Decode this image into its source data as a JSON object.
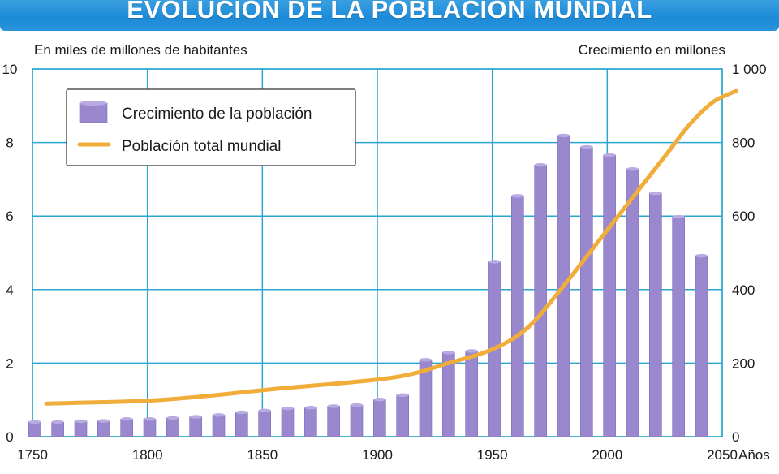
{
  "title": "EVOLUCIÓN DE LA POBLACIÓN MUNDIAL",
  "colors": {
    "title_bg": "#1b8ad8",
    "grid": "#2aa6d0",
    "bar": "#9a88cf",
    "bar_top": "#b9abe2",
    "line": "#f0ad3a"
  },
  "chart_data": {
    "type": "bar",
    "title": "EVOLUCIÓN DE LA POBLACIÓN MUNDIAL",
    "left_axis_label": "En miles de millones de habitantes",
    "right_axis_label": "Crecimiento en millones",
    "x_unit_label": "Años",
    "xlim": [
      1750,
      2050
    ],
    "x_ticks": [
      "1750",
      "1800",
      "1850",
      "1900",
      "1950",
      "2000",
      "2050"
    ],
    "left_ylim": [
      0,
      10
    ],
    "left_ticks": [
      "0",
      "2",
      "4",
      "6",
      "8",
      "10"
    ],
    "right_ylim": [
      0,
      1000
    ],
    "right_ticks": [
      "0",
      "200",
      "400",
      "600",
      "800",
      "1 000"
    ],
    "grid": true,
    "legend_position": "top-left",
    "legend": [
      {
        "label": "Crecimiento de la población",
        "kind": "bar"
      },
      {
        "label": "Población total mundial",
        "kind": "line"
      }
    ],
    "series": [
      {
        "name": "Crecimiento de la población",
        "kind": "bar",
        "axis": "right",
        "x": [
          1750,
          1760,
          1770,
          1780,
          1790,
          1800,
          1810,
          1820,
          1830,
          1840,
          1850,
          1860,
          1870,
          1880,
          1890,
          1900,
          1910,
          1920,
          1930,
          1940,
          1950,
          1960,
          1970,
          1980,
          1990,
          2000,
          2010,
          2020,
          2030,
          2040
        ],
        "values": [
          40,
          40,
          42,
          43,
          48,
          48,
          51,
          54,
          59,
          66,
          71,
          77,
          79,
          83,
          86,
          101,
          113,
          209,
          229,
          233,
          476,
          655,
          739,
          819,
          788,
          766,
          728,
          662,
          598,
          492
        ]
      },
      {
        "name": "Población total mundial",
        "kind": "line",
        "axis": "left",
        "x": [
          1750,
          1800,
          1850,
          1900,
          1925,
          1945,
          1960,
          1975,
          1990,
          2000,
          2010,
          2020,
          2030,
          2040,
          2050
        ],
        "values": [
          0.9,
          1.0,
          1.3,
          1.6,
          2.0,
          2.4,
          3.0,
          4.1,
          5.3,
          6.1,
          6.9,
          7.7,
          8.5,
          9.1,
          9.4
        ]
      }
    ]
  }
}
